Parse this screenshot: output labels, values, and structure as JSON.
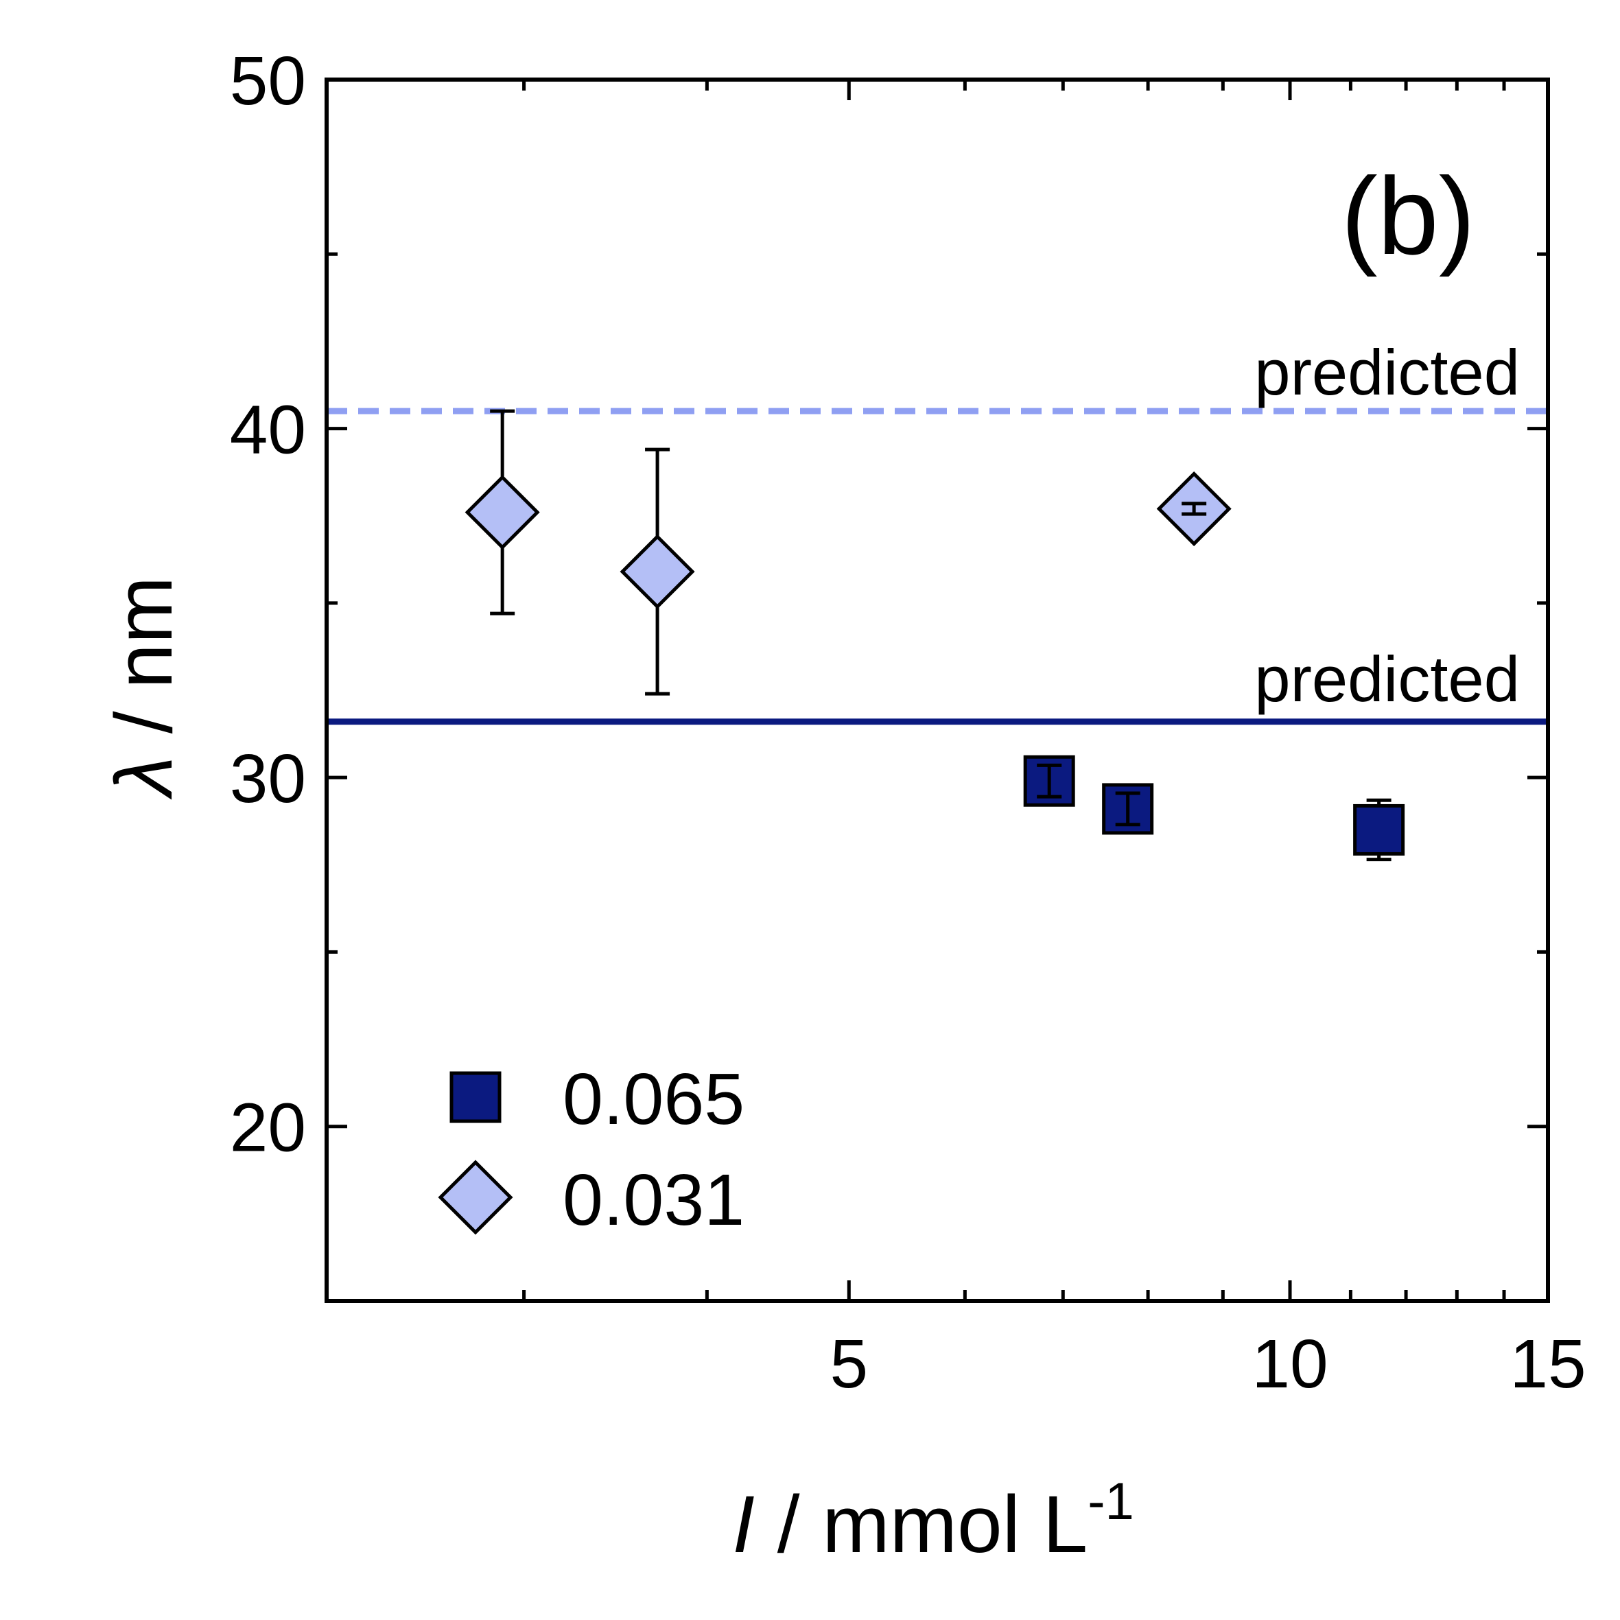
{
  "chart_data": {
    "type": "scatter",
    "panel_label": "(b)",
    "xlabel": {
      "symbol": "I",
      "rest": " / mmol L",
      "superscript": "-1"
    },
    "ylabel": {
      "symbol": "λ",
      "rest": " / nm"
    },
    "x_scale": "log",
    "xlim": [
      2.2,
      15
    ],
    "ylim": [
      15,
      50
    ],
    "x_ticks": [
      5,
      10,
      15
    ],
    "y_ticks": [
      20,
      30,
      40,
      50
    ],
    "series": [
      {
        "name": "0.065",
        "marker": "square",
        "color": "#0b1a80",
        "edge": "#000000",
        "points": [
          {
            "x": 6.85,
            "y": 29.9,
            "err": 0.45
          },
          {
            "x": 7.75,
            "y": 29.1,
            "err": 0.45
          },
          {
            "x": 11.5,
            "y": 28.5,
            "err": 0.85
          }
        ]
      },
      {
        "name": "0.031",
        "marker": "diamond",
        "color": "#b4bff6",
        "edge": "#000000",
        "points": [
          {
            "x": 2.9,
            "y": 37.6,
            "err": 2.9
          },
          {
            "x": 3.7,
            "y": 35.9,
            "err": 3.5
          },
          {
            "x": 8.6,
            "y": 37.7,
            "err": 0.15
          }
        ]
      }
    ],
    "reference_lines": [
      {
        "label": "predicted",
        "y": 40.5,
        "style": "dashed",
        "color": "#8f9ff2"
      },
      {
        "label": "predicted",
        "y": 31.6,
        "style": "solid",
        "color": "#0b1a80"
      }
    ],
    "legend_position": "lower-left"
  }
}
